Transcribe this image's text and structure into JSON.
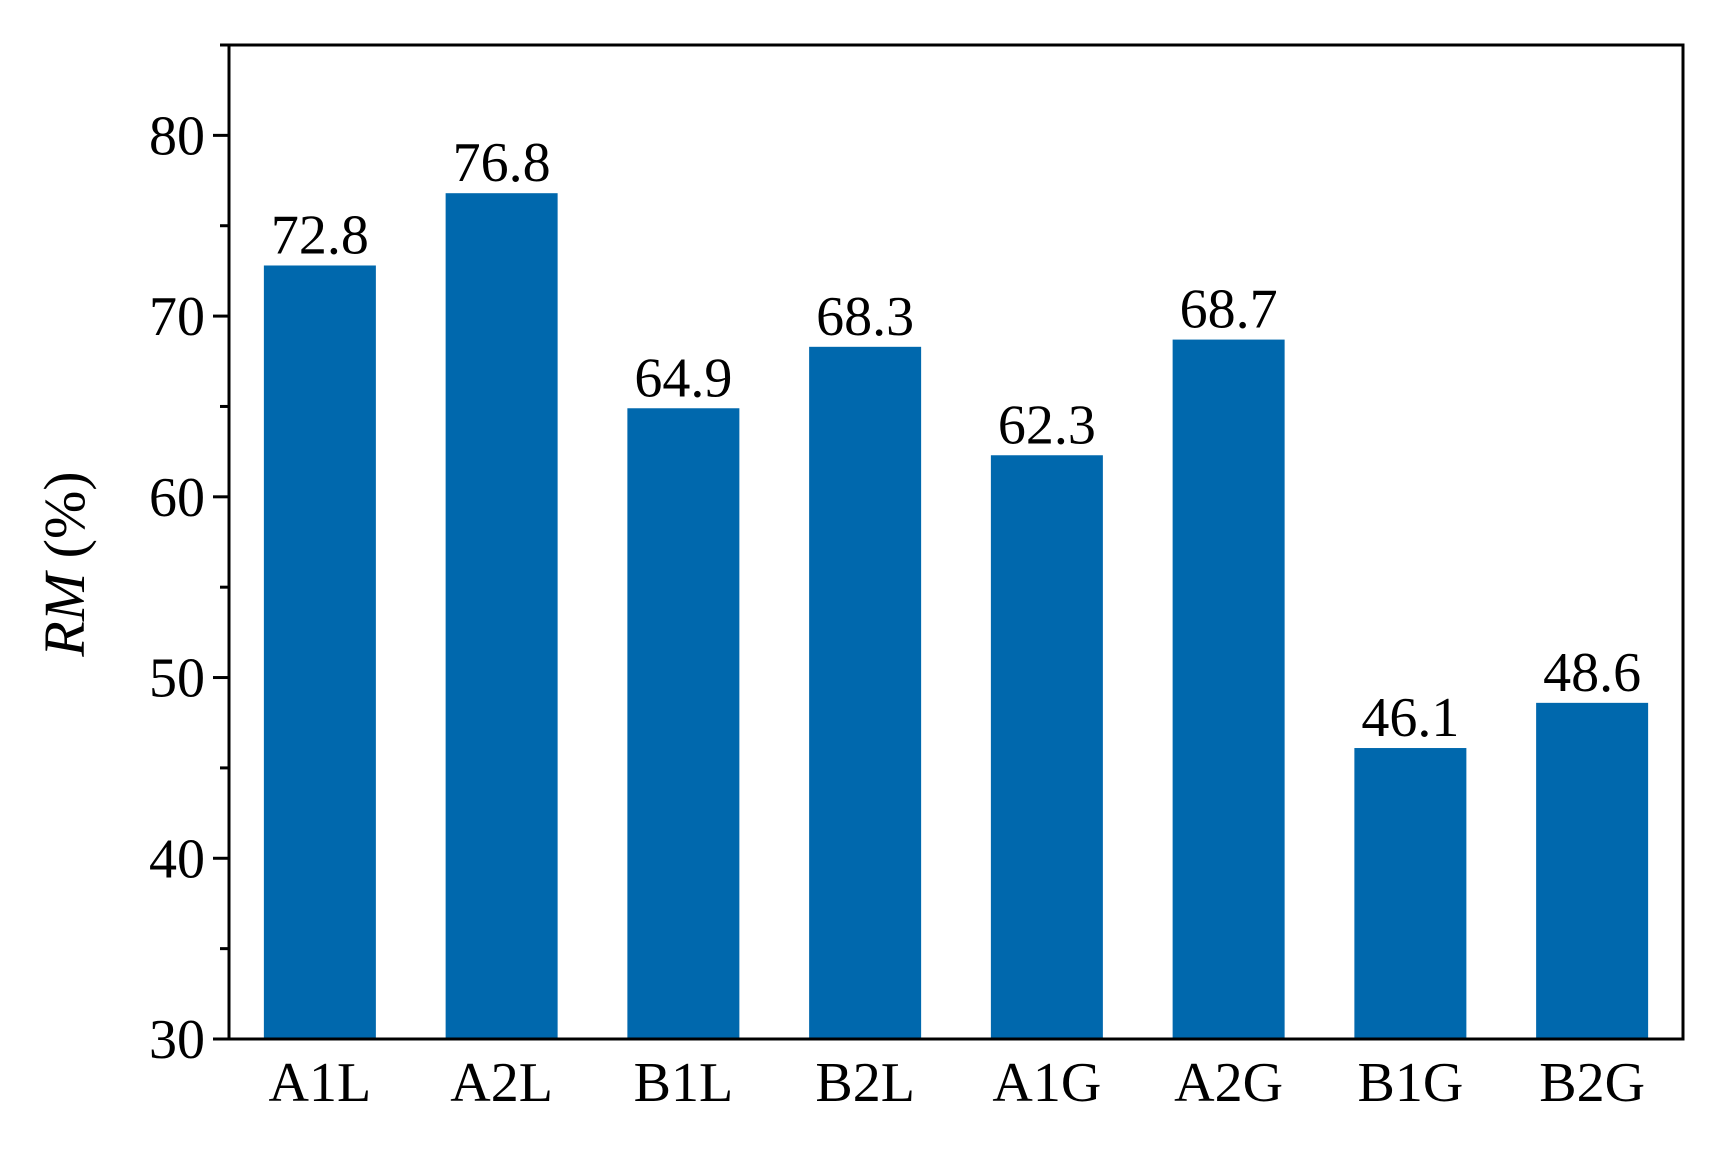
{
  "chart_data": {
    "type": "bar",
    "categories": [
      "A1L",
      "A2L",
      "B1L",
      "B2L",
      "A1G",
      "A2G",
      "B1G",
      "B2G"
    ],
    "values": [
      72.8,
      76.8,
      64.9,
      68.3,
      62.3,
      68.7,
      46.1,
      48.6
    ],
    "data_labels": [
      "72.8",
      "76.8",
      "64.9",
      "68.3",
      "62.3",
      "68.7",
      "46.1",
      "48.6"
    ],
    "title": "",
    "xlabel": "",
    "ylabel": {
      "italic_part": "RM",
      "rest": " (%)"
    },
    "ylim": [
      30,
      85
    ],
    "yticks": [
      30,
      40,
      50,
      60,
      70,
      80
    ],
    "yminor_step": 5,
    "grid": false,
    "legend": "none",
    "bar_color": "#0068AD",
    "axis_color": "#000000"
  }
}
